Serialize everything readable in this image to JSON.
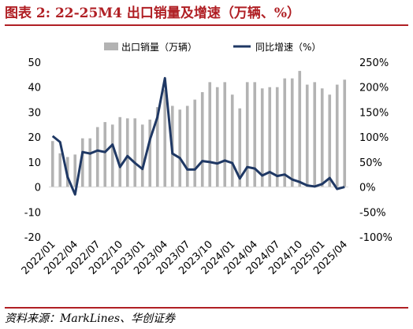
{
  "title": "图表 2:  22-25M4 出口销量及增速（万辆、%）",
  "source": "资料来源：MarkLines、华创证券",
  "chart_data": {
    "type": "bar+line",
    "legend": [
      "出口销量（万辆）",
      "同比增速（%）"
    ],
    "colors": {
      "bar": "#b3b3b3",
      "line": "#1f3864"
    },
    "left_axis": {
      "min": -20,
      "max": 50,
      "step": 10,
      "ticks": [
        "-20",
        "-10",
        "0",
        "10",
        "20",
        "30",
        "40",
        "50"
      ]
    },
    "right_axis": {
      "min": -100,
      "max": 250,
      "step": 50,
      "ticks": [
        "-100%",
        "-50%",
        "0%",
        "50%",
        "100%",
        "150%",
        "200%",
        "250%"
      ]
    },
    "x_labels": [
      "2022/01",
      "2022/04",
      "2022/07",
      "2022/10",
      "2023/01",
      "2023/04",
      "2023/07",
      "2023/10",
      "2024/01",
      "2024/04",
      "2024/07",
      "2024/10",
      "2025/01",
      "2025/04"
    ],
    "label_every": 3,
    "sales": [
      18.4,
      13.5,
      12.0,
      13.0,
      19.5,
      19.5,
      24.0,
      26.0,
      25.0,
      28.0,
      27.5,
      27.5,
      25.0,
      27.0,
      32.0,
      39.0,
      32.5,
      31.0,
      32.5,
      35.0,
      38.0,
      42.0,
      40.0,
      42.0,
      37.0,
      31.5,
      42.0,
      42.0,
      39.5,
      40.0,
      40.0,
      43.5,
      43.5,
      46.5,
      41.0,
      42.0,
      39.5,
      37.0,
      41.0,
      43.0
    ],
    "growth": [
      102,
      90,
      20,
      -15,
      70,
      67,
      73,
      70,
      85,
      40,
      62,
      48,
      36,
      95,
      140,
      218,
      67,
      58,
      35,
      35,
      52,
      50,
      47,
      53,
      48,
      17,
      40,
      37,
      23,
      30,
      22,
      25,
      15,
      10,
      3,
      1,
      6,
      18,
      -4,
      0
    ]
  }
}
